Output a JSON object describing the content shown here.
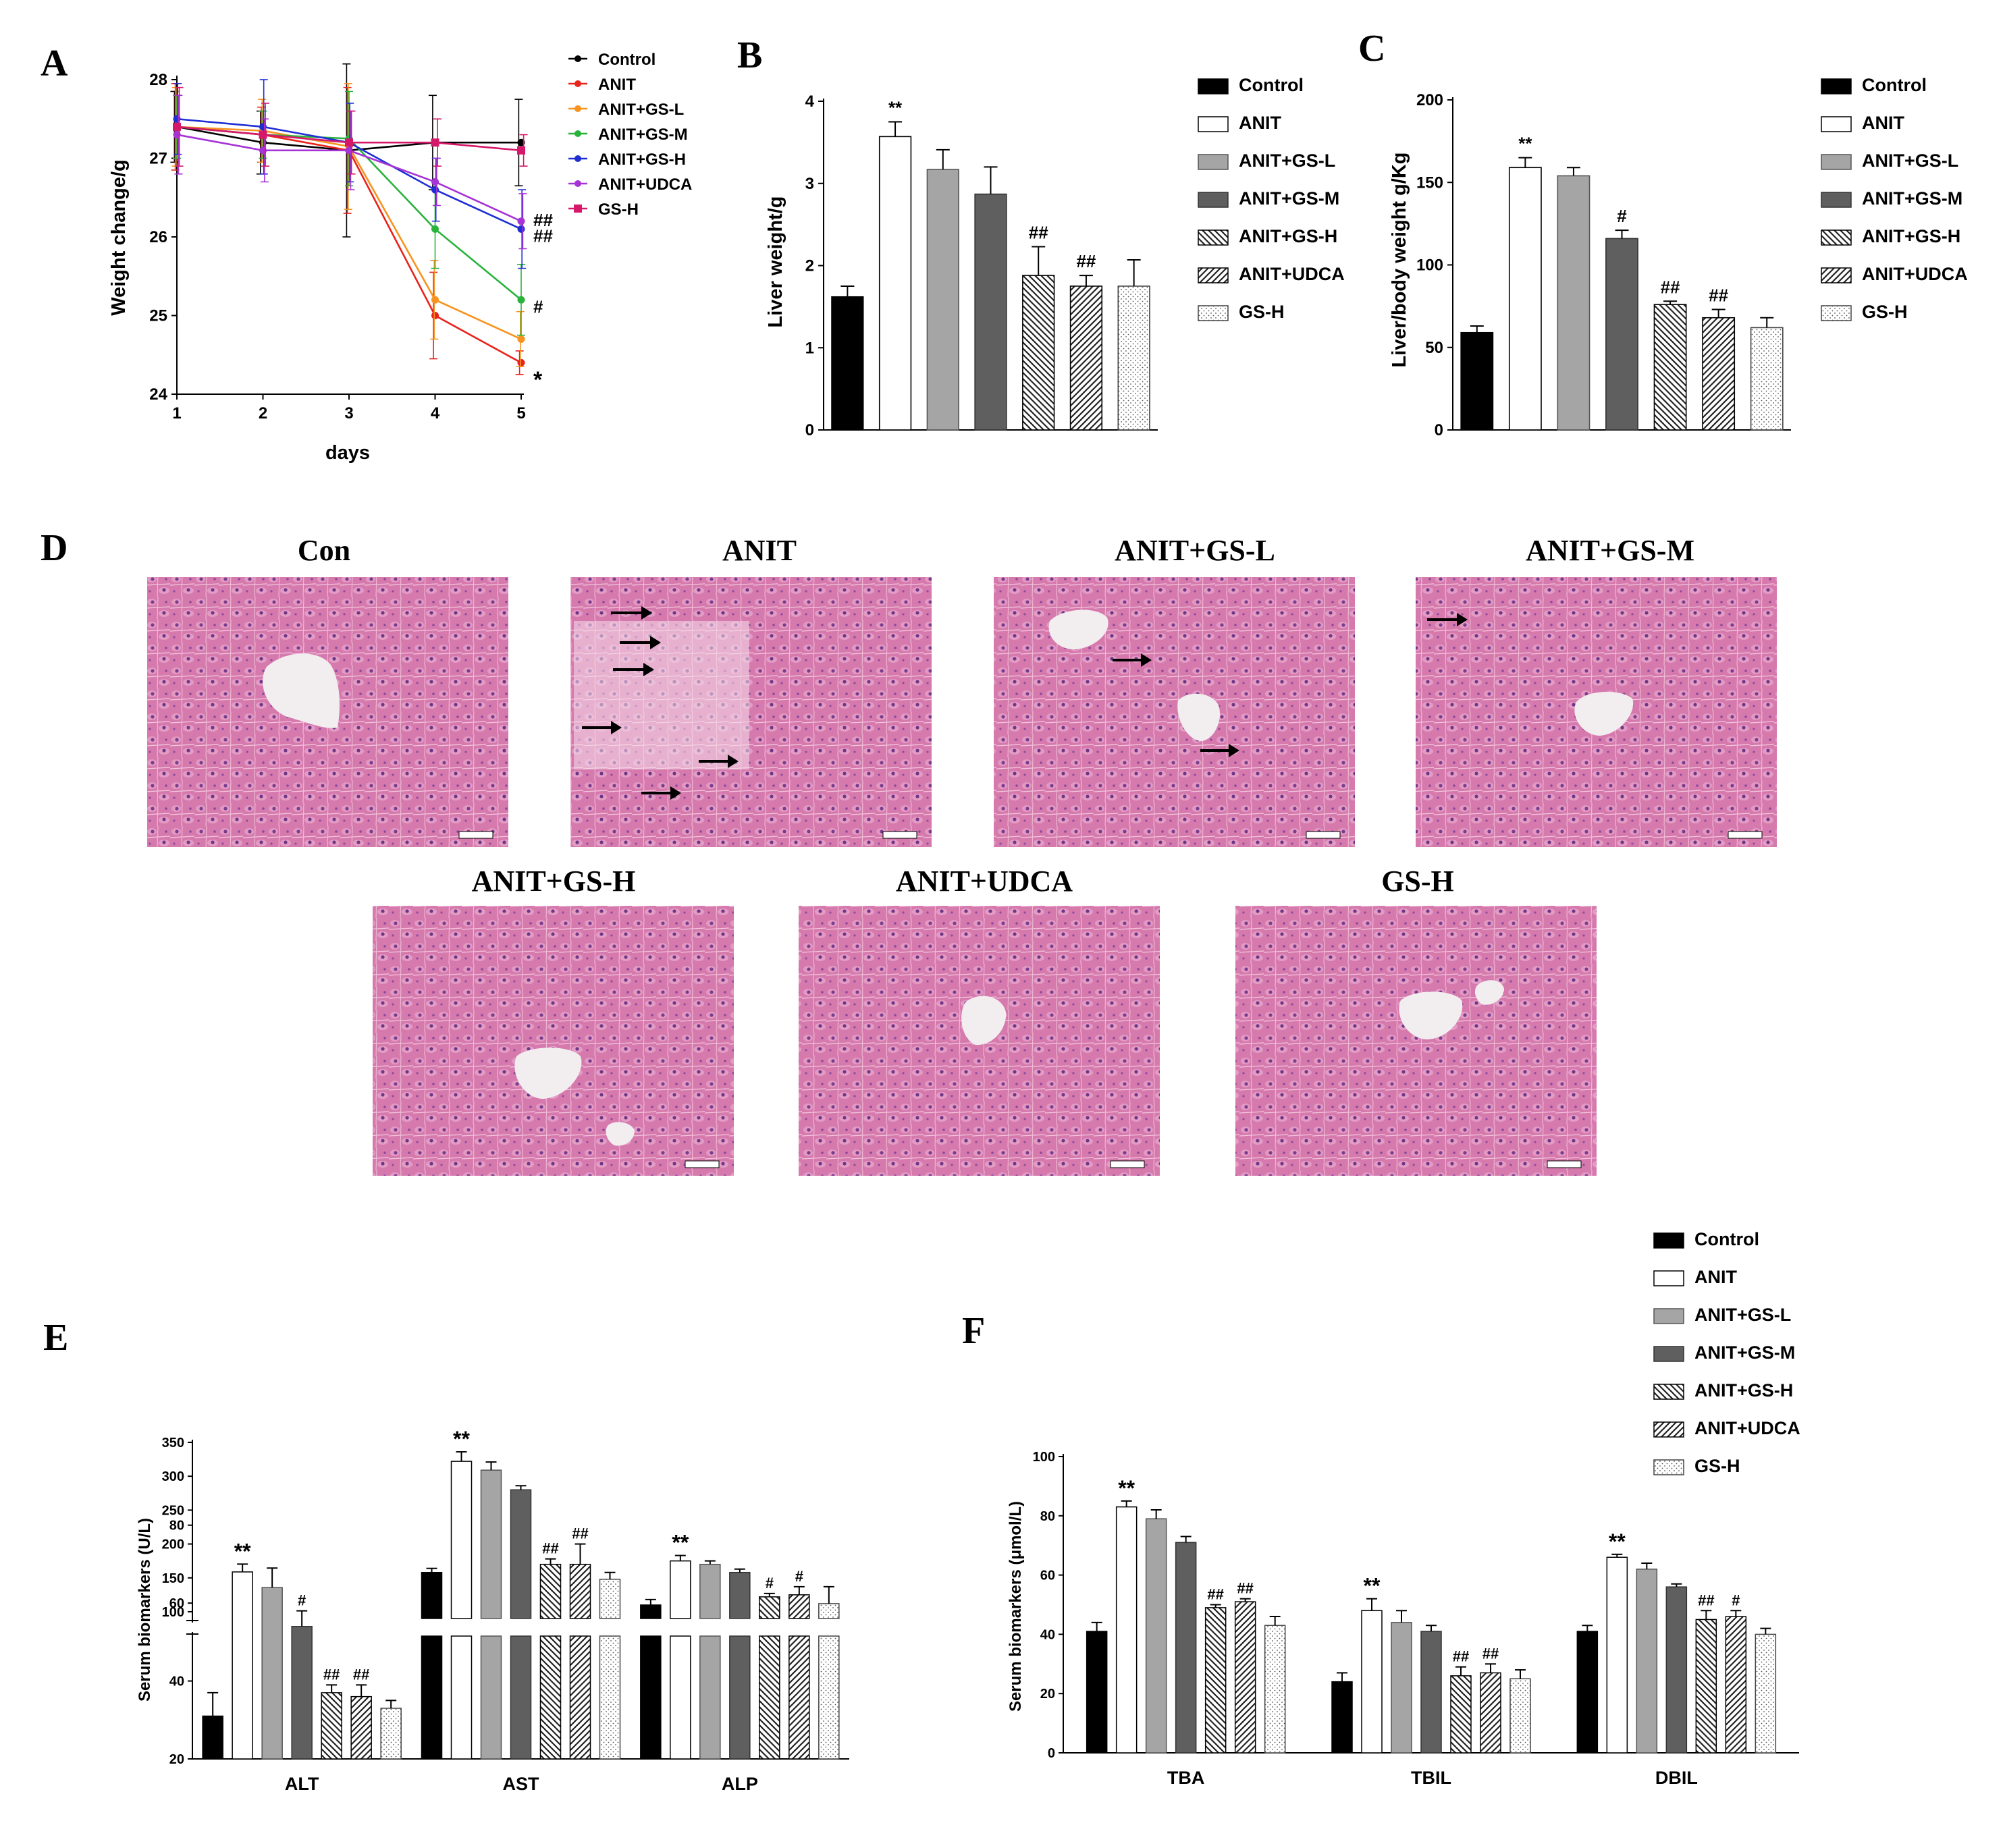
{
  "panels": {
    "A": "A",
    "B": "B",
    "C": "C",
    "D": "D",
    "E": "E",
    "F": "F"
  },
  "colors": {
    "control": "#000000",
    "anit": "#ffffff",
    "gs_l": "#a5a5a5",
    "gs_m": "#5f5f5f",
    "line_control": "#000000",
    "line_anit": "#e8231b",
    "line_gs_l": "#f7931e",
    "line_gs_m": "#29b33b",
    "line_gs_h": "#1f2ed4",
    "line_udca": "#a533d6",
    "line_gsh_only": "#d6186a",
    "tissue": "#d86aa8"
  },
  "chart_data": [
    {
      "id": "A",
      "type": "line",
      "title": "",
      "xlabel": "days",
      "ylabel": "Weight change/g",
      "x": [
        1,
        2,
        3,
        4,
        5
      ],
      "xticks": [
        "1",
        "2",
        "3",
        "4",
        "5"
      ],
      "yticks": [
        "24",
        "25",
        "26",
        "27",
        "28"
      ],
      "ylim": [
        24,
        28
      ],
      "series": [
        {
          "name": "Control",
          "color": "#000000",
          "values": [
            27.4,
            27.2,
            27.1,
            27.2,
            27.2
          ],
          "err": [
            0.45,
            0.4,
            1.1,
            0.6,
            0.55
          ]
        },
        {
          "name": "ANIT",
          "color": "#e8231b",
          "values": [
            27.4,
            27.3,
            27.1,
            25.0,
            24.4
          ],
          "err": [
            0.55,
            0.35,
            0.8,
            0.55,
            0.15
          ]
        },
        {
          "name": "ANIT+GS-L",
          "color": "#f7931e",
          "values": [
            27.4,
            27.35,
            27.15,
            25.2,
            24.7
          ],
          "err": [
            0.5,
            0.4,
            0.8,
            0.5,
            0.35
          ]
        },
        {
          "name": "ANIT+GS-M",
          "color": "#29b33b",
          "values": [
            27.4,
            27.3,
            27.25,
            26.1,
            25.2
          ],
          "err": [
            0.4,
            0.3,
            0.6,
            0.5,
            0.45
          ]
        },
        {
          "name": "ANIT+GS-H",
          "color": "#1f2ed4",
          "values": [
            27.5,
            27.4,
            27.2,
            26.6,
            26.1
          ],
          "err": [
            0.45,
            0.6,
            0.5,
            0.4,
            0.5
          ]
        },
        {
          "name": "ANIT+UDCA",
          "color": "#a533d6",
          "values": [
            27.3,
            27.1,
            27.1,
            26.7,
            26.2
          ],
          "err": [
            0.5,
            0.4,
            0.5,
            0.3,
            0.35
          ]
        },
        {
          "name": "GS-H",
          "color": "#d6186a",
          "values": [
            27.4,
            27.3,
            27.2,
            27.2,
            27.1
          ],
          "err": [
            0.5,
            0.4,
            0.4,
            0.3,
            0.2
          ]
        }
      ],
      "annotations": [
        {
          "text": "##",
          "x": 5,
          "y": 26.2
        },
        {
          "text": "##",
          "x": 5,
          "y": 26.0
        },
        {
          "text": "#",
          "x": 5,
          "y": 25.2
        },
        {
          "text": "*",
          "x": 5,
          "y": 24.4
        }
      ],
      "legend": "right"
    },
    {
      "id": "B",
      "type": "bar",
      "ylabel": "Liver weight/g",
      "categories": [
        "Control",
        "ANIT",
        "ANIT+GS-L",
        "ANIT+GS-M",
        "ANIT+GS-H",
        "ANIT+UDCA",
        "GS-H"
      ],
      "values": [
        1.62,
        3.57,
        3.17,
        2.87,
        1.88,
        1.75,
        1.75
      ],
      "errors": [
        0.13,
        0.18,
        0.24,
        0.33,
        0.35,
        0.13,
        0.32
      ],
      "ylim": [
        0,
        4
      ],
      "yticks": [
        "0",
        "1",
        "2",
        "3",
        "4"
      ],
      "annotations": [
        "",
        "**",
        "",
        "",
        "##",
        "##",
        ""
      ],
      "legend": "right"
    },
    {
      "id": "C",
      "type": "bar",
      "ylabel": "Liver/body weight g/Kg",
      "categories": [
        "Control",
        "ANIT",
        "ANIT+GS-L",
        "ANIT+GS-M",
        "ANIT+GS-H",
        "ANIT+UDCA",
        "GS-H"
      ],
      "values": [
        59,
        159,
        154,
        116,
        76,
        68,
        62
      ],
      "errors": [
        4,
        6,
        5,
        5,
        2,
        5,
        6
      ],
      "ylim": [
        0,
        200
      ],
      "yticks": [
        "0",
        "50",
        "100",
        "150",
        "200"
      ],
      "annotations": [
        "",
        "**",
        "",
        "#",
        "##",
        "##",
        ""
      ],
      "legend": "right"
    },
    {
      "id": "E",
      "type": "bar",
      "ylabel": "Serum biomarkers (U/L)",
      "categories": [
        "ALT",
        "AST",
        "ALP"
      ],
      "series": [
        {
          "name": "Control",
          "values": [
            31,
            158,
            110
          ],
          "err": [
            6,
            6,
            8
          ]
        },
        {
          "name": "ANIT",
          "values": [
            68,
            322,
            175
          ],
          "err": [
            2,
            14,
            8
          ]
        },
        {
          "name": "ANIT+GS-L",
          "values": [
            64,
            309,
            170
          ],
          "err": [
            5,
            12,
            5
          ]
        },
        {
          "name": "ANIT+GS-M",
          "values": [
            54,
            280,
            158
          ],
          "err": [
            4,
            6,
            5
          ]
        },
        {
          "name": "ANIT+GS-H",
          "values": [
            37,
            170,
            122
          ],
          "err": [
            2,
            8,
            5
          ]
        },
        {
          "name": "ANIT+UDCA",
          "values": [
            36,
            170,
            125
          ],
          "err": [
            3,
            30,
            12
          ]
        },
        {
          "name": "GS-H",
          "values": [
            33,
            148,
            112
          ],
          "err": [
            2,
            10,
            25
          ]
        }
      ],
      "annotations": [
        [
          "",
          "**",
          "",
          "#",
          "##",
          "##",
          ""
        ],
        [
          "",
          "**",
          "",
          "",
          "##",
          "##",
          ""
        ],
        [
          "",
          "**",
          "",
          "",
          "#",
          "#",
          ""
        ]
      ],
      "yticks_low": [
        "20",
        "40",
        "60",
        "80"
      ],
      "yticks_high": [
        "100",
        "150",
        "200",
        "250",
        "300",
        "350"
      ],
      "ylim_low": [
        20,
        90
      ],
      "ylim_high": [
        90,
        350
      ],
      "axis_break": true
    },
    {
      "id": "F",
      "type": "bar",
      "ylabel": "Serum biomarkers (μmol/L)",
      "categories": [
        "TBA",
        "TBIL",
        "DBIL"
      ],
      "series": [
        {
          "name": "Control",
          "values": [
            41,
            24,
            41
          ],
          "err": [
            3,
            3,
            2
          ]
        },
        {
          "name": "ANIT",
          "values": [
            83,
            48,
            66
          ],
          "err": [
            2,
            4,
            1
          ]
        },
        {
          "name": "ANIT+GS-L",
          "values": [
            79,
            44,
            62
          ],
          "err": [
            3,
            4,
            2
          ]
        },
        {
          "name": "ANIT+GS-M",
          "values": [
            71,
            41,
            56
          ],
          "err": [
            2,
            2,
            1
          ]
        },
        {
          "name": "ANIT+GS-H",
          "values": [
            49,
            26,
            45
          ],
          "err": [
            1,
            3,
            3
          ]
        },
        {
          "name": "ANIT+UDCA",
          "values": [
            51,
            27,
            46
          ],
          "err": [
            1,
            3,
            2
          ]
        },
        {
          "name": "GS-H",
          "values": [
            43,
            25,
            40
          ],
          "err": [
            3,
            3,
            2
          ]
        }
      ],
      "annotations": [
        [
          "",
          "**",
          "",
          "",
          "##",
          "##",
          ""
        ],
        [
          "",
          "**",
          "",
          "",
          "##",
          "##",
          ""
        ],
        [
          "",
          "**",
          "",
          "",
          "##",
          "#",
          ""
        ]
      ],
      "ylim": [
        0,
        100
      ],
      "yticks": [
        "0",
        "20",
        "40",
        "60",
        "80",
        "100"
      ]
    }
  ],
  "legend_labels": [
    "Control",
    "ANIT",
    "ANIT+GS-L",
    "ANIT+GS-M",
    "ANIT+GS-H",
    "ANIT+UDCA",
    "GS-H"
  ],
  "histology": {
    "titles": [
      "Con",
      "ANIT",
      "ANIT+GS-L",
      "ANIT+GS-M",
      "ANIT+GS-H",
      "ANIT+UDCA",
      "GS-H"
    ]
  }
}
